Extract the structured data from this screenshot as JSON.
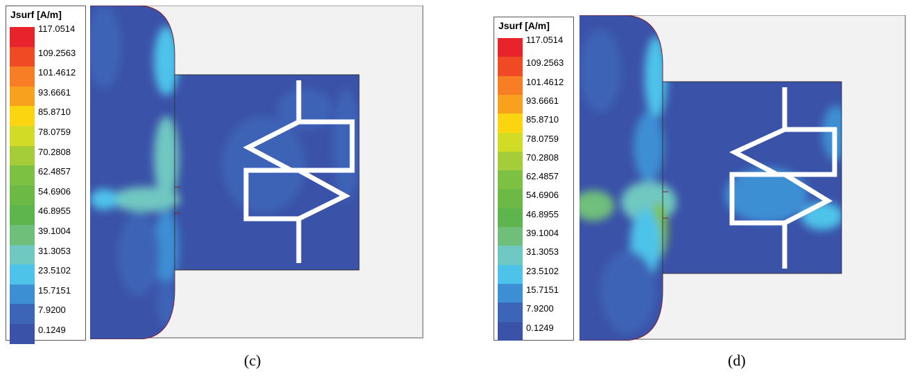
{
  "colors": [
    "#e8232b",
    "#f04a24",
    "#f77e24",
    "#f8a11e",
    "#fbd50f",
    "#d2dc26",
    "#a5cd3a",
    "#7dc143",
    "#6cba45",
    "#5fb54d",
    "#6fbf7b",
    "#6fc8c1",
    "#4dc3ea",
    "#3d8fd4",
    "#3c64b7",
    "#3a52a8"
  ],
  "panels": [
    {
      "legend": {
        "title": "Jsurf [A/m]",
        "ticks": [
          "117.0514",
          "109.2563",
          "101.4612",
          "93.6661",
          "85.8710",
          "78.0759",
          "70.2808",
          "62.4857",
          "54.6906",
          "46.8955",
          "39.1004",
          "31.3053",
          "23.5102",
          "15.7151",
          "7.9200",
          "0.1249"
        ]
      },
      "caption": "(c)"
    },
    {
      "legend": {
        "title": "Jsurf [A/m]",
        "ticks": [
          "117.0514",
          "109.2563",
          "101.4612",
          "93.6661",
          "85.8710",
          "78.0759",
          "70.2808",
          "62.4857",
          "54.6906",
          "46.8955",
          "39.1004",
          "31.3053",
          "23.5102",
          "15.7151",
          "7.9200",
          "0.1249"
        ]
      },
      "caption": "(d)"
    }
  ]
}
